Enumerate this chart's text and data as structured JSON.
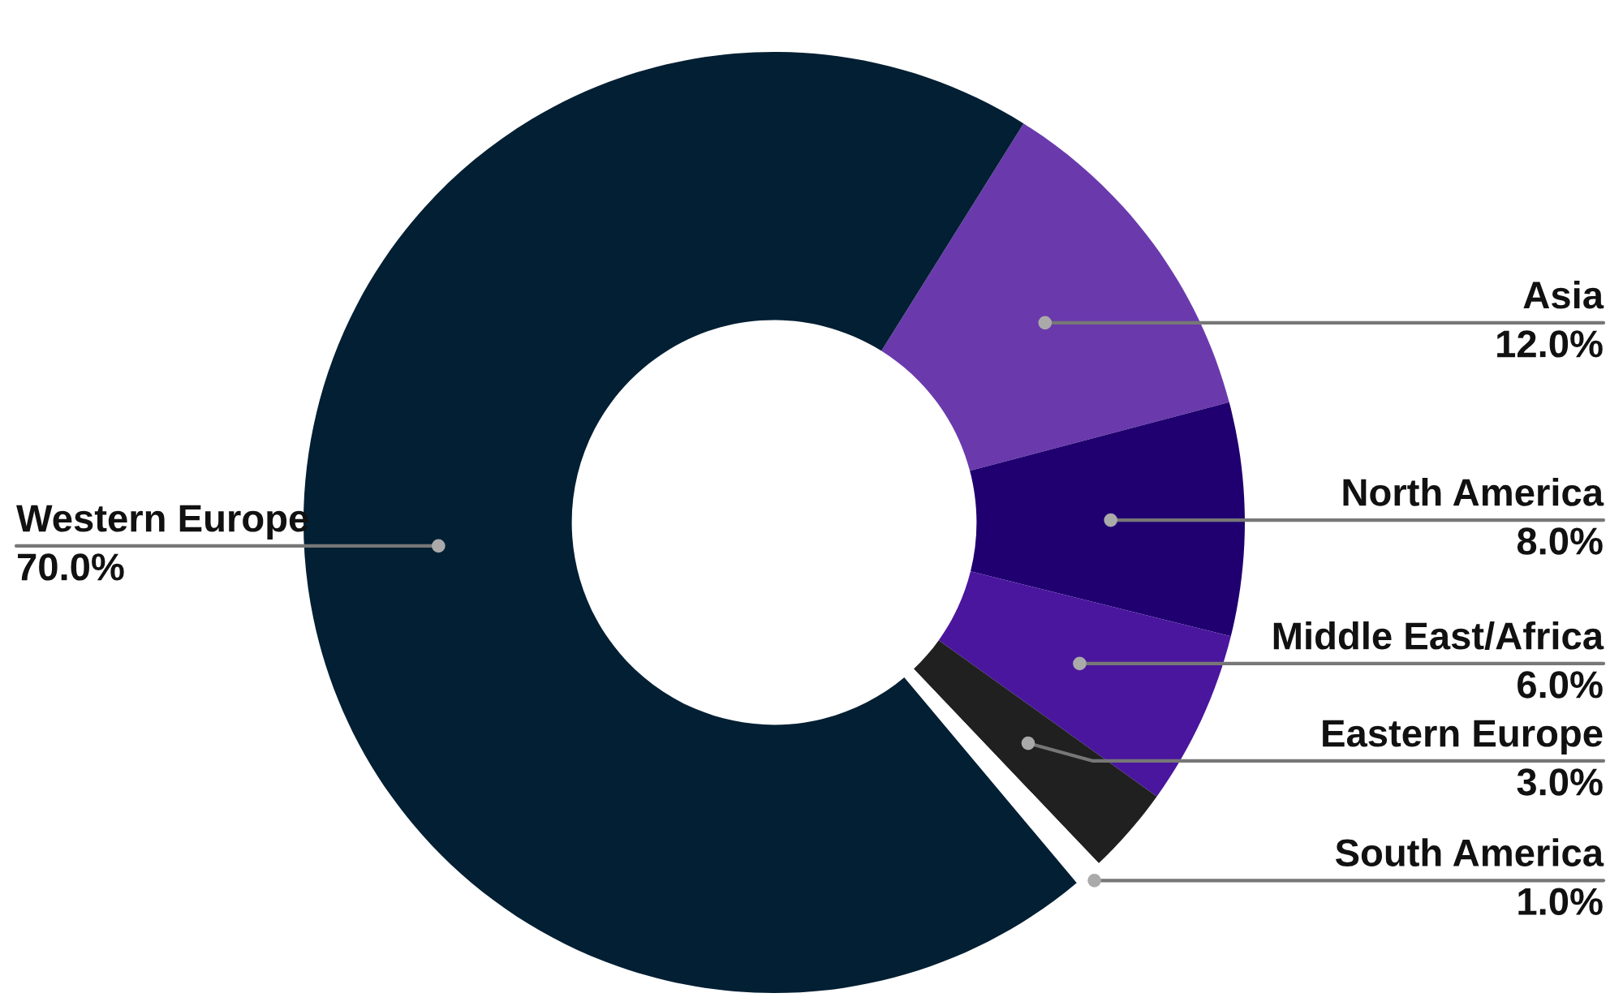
{
  "chart_data": {
    "type": "donut",
    "categories": [
      "Asia",
      "North America",
      "Middle East/Africa",
      "Eastern Europe",
      "South America",
      "Western Europe"
    ],
    "values": [
      12.0,
      8.0,
      6.0,
      3.0,
      1.0,
      70.0
    ],
    "value_labels": [
      "12.0%",
      "8.0%",
      "6.0%",
      "3.0%",
      "1.0%",
      "70.0%"
    ],
    "colors": [
      "#6a3aad",
      "#200070",
      "#4a169e",
      "#202020",
      "#ffffff",
      "#021f33"
    ],
    "legend": false
  }
}
